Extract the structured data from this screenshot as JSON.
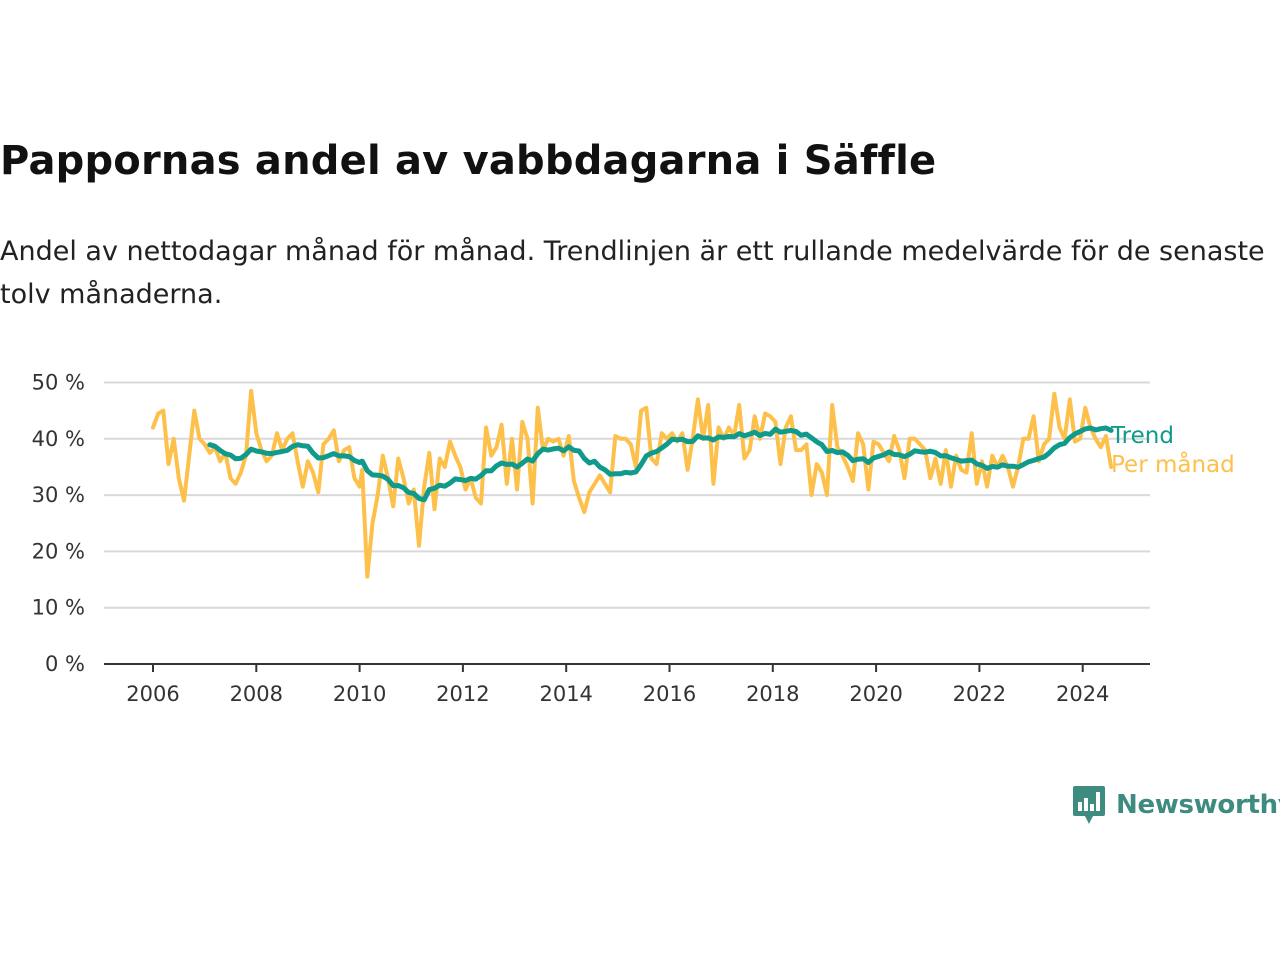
{
  "title": "Pappornas andel av vabbdagarna i Säffle",
  "subtitle": "Andel av nettodagar månad för månad. Trendlinjen är ett rullande medelvärde för de senaste tolv månaderna.",
  "colors": {
    "trend": "#0f9a8c",
    "monthly": "#fdc04a",
    "grid": "#d9d9d9",
    "axis": "#333333",
    "logo": "#3e8c7f"
  },
  "logo": {
    "text": "Newsworthy",
    "icon": "bar-chart-speech-bubble-icon"
  },
  "chart_data": {
    "type": "line",
    "title": "Pappornas andel av vabbdagarna i Säffle",
    "ylim": [
      0,
      50
    ],
    "xlim": [
      2006,
      2024.6
    ],
    "y_ticks": [
      0,
      10,
      20,
      30,
      40,
      50
    ],
    "y_tick_labels": [
      "0 %",
      "10 %",
      "20 %",
      "30 %",
      "40 %",
      "50 %"
    ],
    "x_ticks": [
      2006,
      2008,
      2010,
      2012,
      2014,
      2016,
      2018,
      2020,
      2022,
      2024
    ],
    "x_tick_labels": [
      "2006",
      "2008",
      "2010",
      "2012",
      "2014",
      "2016",
      "2018",
      "2020",
      "2022",
      "2024"
    ],
    "grid": true,
    "legend": "end-of-line labels",
    "series": [
      {
        "name": "Per månad",
        "color": "#fdc04a",
        "points": [
          [
            2006.0,
            42
          ],
          [
            2006.1,
            44.5
          ],
          [
            2006.2,
            45
          ],
          [
            2006.3,
            35.5
          ],
          [
            2006.4,
            40
          ],
          [
            2006.5,
            33
          ],
          [
            2006.6,
            29
          ],
          [
            2006.7,
            37
          ],
          [
            2006.8,
            45
          ],
          [
            2006.9,
            40
          ],
          [
            2007.0,
            39
          ],
          [
            2007.1,
            37.5
          ],
          [
            2007.2,
            38.5
          ],
          [
            2007.3,
            36
          ],
          [
            2007.4,
            37.5
          ],
          [
            2007.5,
            33
          ],
          [
            2007.6,
            32
          ],
          [
            2007.7,
            34
          ],
          [
            2007.8,
            37
          ],
          [
            2007.9,
            48.5
          ],
          [
            2008.0,
            41
          ],
          [
            2008.1,
            38
          ],
          [
            2008.2,
            36
          ],
          [
            2008.3,
            37
          ],
          [
            2008.4,
            41
          ],
          [
            2008.5,
            38
          ],
          [
            2008.6,
            40
          ],
          [
            2008.7,
            41
          ],
          [
            2008.8,
            36
          ],
          [
            2008.9,
            31.5
          ],
          [
            2009.0,
            36
          ],
          [
            2009.1,
            34
          ],
          [
            2009.2,
            30.5
          ],
          [
            2009.3,
            39
          ],
          [
            2009.4,
            40
          ],
          [
            2009.5,
            41.5
          ],
          [
            2009.6,
            36
          ],
          [
            2009.7,
            38
          ],
          [
            2009.8,
            38.5
          ],
          [
            2009.9,
            33
          ],
          [
            2010.0,
            31.5
          ],
          [
            2010.05,
            34.5
          ],
          [
            2010.15,
            15.5
          ],
          [
            2010.25,
            25
          ],
          [
            2010.35,
            30
          ],
          [
            2010.45,
            37
          ],
          [
            2010.55,
            33
          ],
          [
            2010.65,
            28
          ],
          [
            2010.75,
            36.5
          ],
          [
            2010.85,
            33
          ],
          [
            2010.95,
            28.5
          ],
          [
            2011.05,
            31
          ],
          [
            2011.15,
            21
          ],
          [
            2011.25,
            31.5
          ],
          [
            2011.35,
            37.5
          ],
          [
            2011.45,
            27.5
          ],
          [
            2011.55,
            36.5
          ],
          [
            2011.65,
            35
          ],
          [
            2011.75,
            39.5
          ],
          [
            2011.85,
            37
          ],
          [
            2011.95,
            35
          ],
          [
            2012.05,
            31
          ],
          [
            2012.15,
            33
          ],
          [
            2012.25,
            29.5
          ],
          [
            2012.35,
            28.5
          ],
          [
            2012.45,
            42
          ],
          [
            2012.55,
            37
          ],
          [
            2012.65,
            38.5
          ],
          [
            2012.75,
            42.5
          ],
          [
            2012.85,
            32
          ],
          [
            2012.95,
            40
          ],
          [
            2013.05,
            31
          ],
          [
            2013.15,
            43
          ],
          [
            2013.25,
            40
          ],
          [
            2013.35,
            28.5
          ],
          [
            2013.45,
            45.5
          ],
          [
            2013.55,
            38
          ],
          [
            2013.65,
            40
          ],
          [
            2013.75,
            39.5
          ],
          [
            2013.85,
            40
          ],
          [
            2013.95,
            37
          ],
          [
            2014.05,
            40.5
          ],
          [
            2014.15,
            32.5
          ],
          [
            2014.25,
            29.5
          ],
          [
            2014.35,
            27
          ],
          [
            2014.45,
            30.5
          ],
          [
            2014.55,
            32
          ],
          [
            2014.65,
            33.5
          ],
          [
            2014.75,
            32
          ],
          [
            2014.85,
            30.5
          ],
          [
            2014.95,
            40.5
          ],
          [
            2015.05,
            40
          ],
          [
            2015.15,
            40
          ],
          [
            2015.25,
            39
          ],
          [
            2015.35,
            35
          ],
          [
            2015.45,
            45
          ],
          [
            2015.55,
            45.5
          ],
          [
            2015.65,
            36.5
          ],
          [
            2015.75,
            35.5
          ],
          [
            2015.85,
            41
          ],
          [
            2015.95,
            40
          ],
          [
            2016.05,
            41
          ],
          [
            2016.15,
            39.5
          ],
          [
            2016.25,
            41
          ],
          [
            2016.35,
            34.5
          ],
          [
            2016.45,
            40
          ],
          [
            2016.55,
            47
          ],
          [
            2016.65,
            40
          ],
          [
            2016.75,
            46
          ],
          [
            2016.85,
            32
          ],
          [
            2016.95,
            42
          ],
          [
            2017.05,
            40
          ],
          [
            2017.15,
            42
          ],
          [
            2017.25,
            40.5
          ],
          [
            2017.35,
            46
          ],
          [
            2017.45,
            36.5
          ],
          [
            2017.55,
            38
          ],
          [
            2017.65,
            44
          ],
          [
            2017.75,
            40
          ],
          [
            2017.85,
            44.5
          ],
          [
            2017.95,
            44
          ],
          [
            2018.05,
            43
          ],
          [
            2018.15,
            35.5
          ],
          [
            2018.25,
            42
          ],
          [
            2018.35,
            44
          ],
          [
            2018.45,
            38
          ],
          [
            2018.55,
            38
          ],
          [
            2018.65,
            39
          ],
          [
            2018.75,
            30
          ],
          [
            2018.85,
            35.5
          ],
          [
            2018.95,
            34
          ],
          [
            2019.05,
            30
          ],
          [
            2019.15,
            46
          ],
          [
            2019.25,
            38.5
          ],
          [
            2019.35,
            37
          ],
          [
            2019.45,
            35
          ],
          [
            2019.55,
            32.5
          ],
          [
            2019.65,
            41
          ],
          [
            2019.75,
            39
          ],
          [
            2019.85,
            31
          ],
          [
            2019.95,
            39.5
          ],
          [
            2020.05,
            39
          ],
          [
            2020.15,
            37.5
          ],
          [
            2020.25,
            36
          ],
          [
            2020.35,
            40.5
          ],
          [
            2020.45,
            38
          ],
          [
            2020.55,
            33
          ],
          [
            2020.65,
            40
          ],
          [
            2020.75,
            40
          ],
          [
            2020.85,
            39
          ],
          [
            2020.95,
            38
          ],
          [
            2021.05,
            33
          ],
          [
            2021.15,
            36.5
          ],
          [
            2021.25,
            32
          ],
          [
            2021.35,
            38
          ],
          [
            2021.45,
            31.5
          ],
          [
            2021.55,
            37
          ],
          [
            2021.65,
            34.5
          ],
          [
            2021.75,
            34
          ],
          [
            2021.85,
            41
          ],
          [
            2021.95,
            32
          ],
          [
            2022.05,
            36
          ],
          [
            2022.15,
            31.5
          ],
          [
            2022.25,
            37
          ],
          [
            2022.35,
            35
          ],
          [
            2022.45,
            37
          ],
          [
            2022.55,
            35
          ],
          [
            2022.65,
            31.5
          ],
          [
            2022.75,
            35
          ],
          [
            2022.85,
            40
          ],
          [
            2022.95,
            40
          ],
          [
            2023.05,
            44
          ],
          [
            2023.15,
            36
          ],
          [
            2023.25,
            39
          ],
          [
            2023.35,
            40
          ],
          [
            2023.45,
            48
          ],
          [
            2023.55,
            42
          ],
          [
            2023.65,
            40
          ],
          [
            2023.75,
            47
          ],
          [
            2023.85,
            39.5
          ],
          [
            2023.95,
            40
          ],
          [
            2024.05,
            45.5
          ],
          [
            2024.15,
            42
          ],
          [
            2024.25,
            40
          ],
          [
            2024.35,
            38.5
          ],
          [
            2024.45,
            40.5
          ],
          [
            2024.55,
            35
          ]
        ]
      },
      {
        "name": "Trend",
        "color": "#0f9a8c",
        "points": []
      }
    ]
  }
}
